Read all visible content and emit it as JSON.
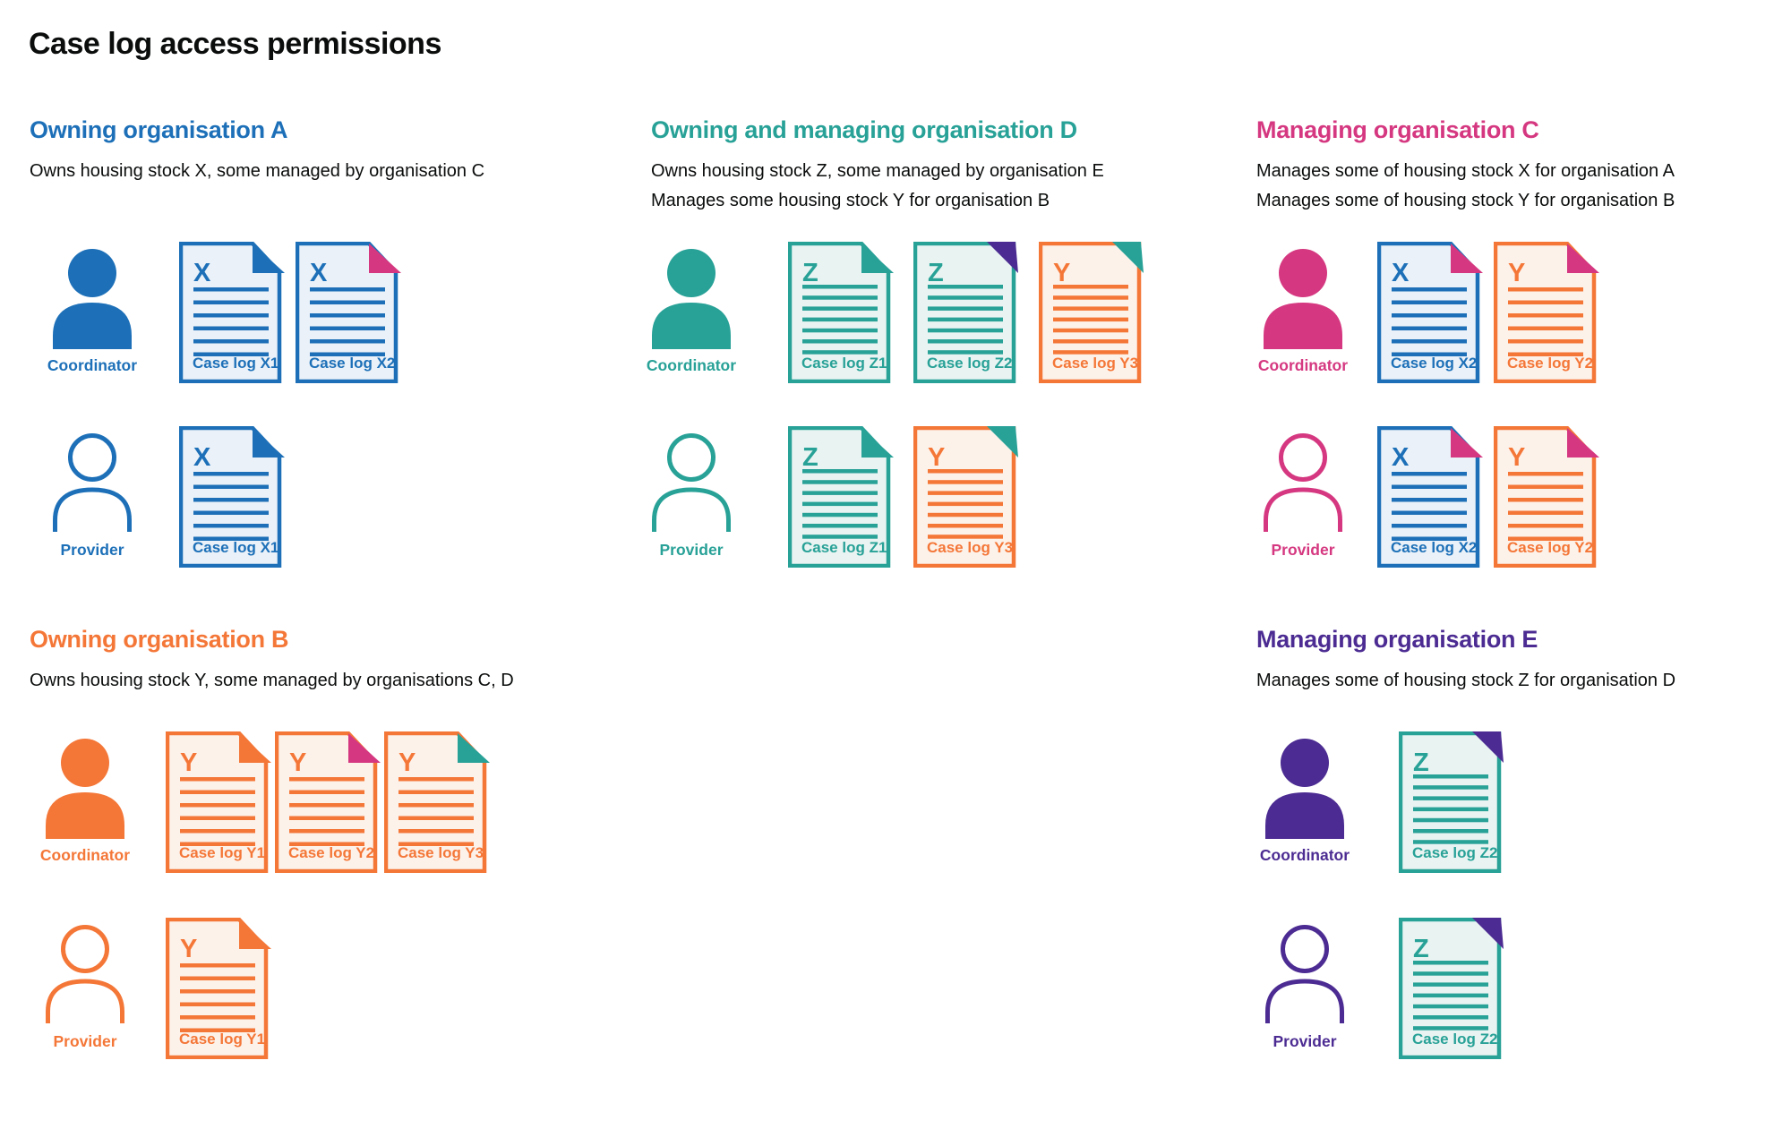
{
  "title": "Case log access permissions",
  "colors": {
    "blue": "#1d70b8",
    "teal": "#28a197",
    "orange": "#f47738",
    "pink": "#d53880",
    "purple": "#4c2c92",
    "text": "#0b0c0c",
    "fill_blue": "#eaf1f8",
    "fill_teal": "#e9f4f2",
    "fill_orange": "#fdf2ea"
  },
  "sections": [
    {
      "id": "org-a",
      "heading": "Owning organisation A",
      "color": "blue",
      "description_lines": [
        "Owns housing stock X, some managed by organisation C"
      ],
      "rows": [
        {
          "role": "Coordinator",
          "person_filled": true,
          "docs": [
            {
              "letter": "X",
              "label": "Case log X1",
              "doc_color": "blue",
              "fill": "fill_blue",
              "fold_color": "blue",
              "fold_style": "dogear",
              "lines": 6
            },
            {
              "letter": "X",
              "label": "Case log X2",
              "doc_color": "blue",
              "fill": "fill_blue",
              "fold_color": "pink",
              "fold_style": "dogear",
              "lines": 6
            }
          ]
        },
        {
          "role": "Provider",
          "person_filled": false,
          "docs": [
            {
              "letter": "X",
              "label": "Case log X1",
              "doc_color": "blue",
              "fill": "fill_blue",
              "fold_color": "blue",
              "fold_style": "dogear",
              "lines": 6
            }
          ]
        }
      ]
    },
    {
      "id": "org-d",
      "heading": "Owning and managing organisation D",
      "color": "teal",
      "description_lines": [
        "Owns housing stock Z, some managed by organisation E",
        "Manages some housing stock Y for organisation B"
      ],
      "rows": [
        {
          "role": "Coordinator",
          "person_filled": true,
          "docs": [
            {
              "letter": "Z",
              "label": "Case log Z1",
              "doc_color": "teal",
              "fill": "fill_teal",
              "fold_color": "teal",
              "fold_style": "dogear",
              "lines": 7
            },
            {
              "letter": "Z",
              "label": "Case log Z2",
              "doc_color": "teal",
              "fill": "fill_teal",
              "fold_color": "purple",
              "fold_style": "flat",
              "lines": 7
            },
            {
              "letter": "Y",
              "label": "Case log Y3",
              "doc_color": "orange",
              "fill": "fill_orange",
              "fold_color": "teal",
              "fold_style": "flat",
              "lines": 7
            }
          ]
        },
        {
          "role": "Provider",
          "person_filled": false,
          "docs": [
            {
              "letter": "Z",
              "label": "Case log Z1",
              "doc_color": "teal",
              "fill": "fill_teal",
              "fold_color": "teal",
              "fold_style": "dogear",
              "lines": 7
            },
            {
              "letter": "Y",
              "label": "Case log Y3",
              "doc_color": "orange",
              "fill": "fill_orange",
              "fold_color": "teal",
              "fold_style": "flat",
              "lines": 7
            }
          ]
        }
      ]
    },
    {
      "id": "org-c",
      "heading": "Managing organisation C",
      "color": "pink",
      "description_lines": [
        "Manages some of housing stock X for organisation A",
        "Manages some of housing stock Y for organisation B"
      ],
      "rows": [
        {
          "role": "Coordinator",
          "person_filled": true,
          "docs": [
            {
              "letter": "X",
              "label": "Case log X2",
              "doc_color": "blue",
              "fill": "fill_blue",
              "fold_color": "pink",
              "fold_style": "dogear",
              "lines": 6
            },
            {
              "letter": "Y",
              "label": "Case log Y2",
              "doc_color": "orange",
              "fill": "fill_orange",
              "fold_color": "pink",
              "fold_style": "dogear",
              "lines": 6
            }
          ]
        },
        {
          "role": "Provider",
          "person_filled": false,
          "docs": [
            {
              "letter": "X",
              "label": "Case log X2",
              "doc_color": "blue",
              "fill": "fill_blue",
              "fold_color": "pink",
              "fold_style": "dogear",
              "lines": 6
            },
            {
              "letter": "Y",
              "label": "Case log Y2",
              "doc_color": "orange",
              "fill": "fill_orange",
              "fold_color": "pink",
              "fold_style": "dogear",
              "lines": 6
            }
          ]
        }
      ]
    },
    {
      "id": "org-b",
      "heading": "Owning organisation B",
      "color": "orange",
      "description_lines": [
        "Owns housing stock Y, some managed by organisations C, D"
      ],
      "rows": [
        {
          "role": "Coordinator",
          "person_filled": true,
          "docs": [
            {
              "letter": "Y",
              "label": "Case log Y1",
              "doc_color": "orange",
              "fill": "fill_orange",
              "fold_color": "orange",
              "fold_style": "dogear",
              "lines": 6
            },
            {
              "letter": "Y",
              "label": "Case log Y2",
              "doc_color": "orange",
              "fill": "fill_orange",
              "fold_color": "pink",
              "fold_style": "dogear",
              "lines": 6
            },
            {
              "letter": "Y",
              "label": "Case log Y3",
              "doc_color": "orange",
              "fill": "fill_orange",
              "fold_color": "teal",
              "fold_style": "dogear",
              "lines": 6
            }
          ]
        },
        {
          "role": "Provider",
          "person_filled": false,
          "docs": [
            {
              "letter": "Y",
              "label": "Case log Y1",
              "doc_color": "orange",
              "fill": "fill_orange",
              "fold_color": "orange",
              "fold_style": "dogear",
              "lines": 6
            }
          ]
        }
      ]
    },
    {
      "id": "org-e",
      "heading": "Managing organisation E",
      "color": "purple",
      "description_lines": [
        "Manages some of housing stock Z for organisation D"
      ],
      "rows": [
        {
          "role": "Coordinator",
          "person_filled": true,
          "docs": [
            {
              "letter": "Z",
              "label": "Case log Z2",
              "doc_color": "teal",
              "fill": "fill_teal",
              "fold_color": "purple",
              "fold_style": "flat",
              "lines": 7
            }
          ]
        },
        {
          "role": "Provider",
          "person_filled": false,
          "docs": [
            {
              "letter": "Z",
              "label": "Case log Z2",
              "doc_color": "teal",
              "fill": "fill_teal",
              "fold_color": "purple",
              "fold_style": "flat",
              "lines": 7
            }
          ]
        }
      ]
    }
  ]
}
